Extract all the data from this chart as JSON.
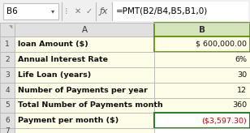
{
  "formula_bar_cell": "B6",
  "formula_bar_formula": "=PMT(B2/B4,B5,B1,0)",
  "col_a_header": "A",
  "col_b_header": "B",
  "rows": [
    {
      "row": "1",
      "label": "loan Amount ($)",
      "value": "$ 600,000.00",
      "highlight": false
    },
    {
      "row": "2",
      "label": "Annual Interest Rate",
      "value": "6%",
      "highlight": false
    },
    {
      "row": "3",
      "label": "Life Loan (years)",
      "value": "30",
      "highlight": false
    },
    {
      "row": "4",
      "label": "Number of Payments per year",
      "value": "12",
      "highlight": false
    },
    {
      "row": "5",
      "label": "Total Number of Payments month",
      "value": "360",
      "highlight": false
    },
    {
      "row": "6",
      "label": "Payment per month ($)",
      "value": "($3,597.30)",
      "highlight": true
    }
  ],
  "cell_bg_color": "#FEFDE8",
  "header_bg_color": "#E0E0E0",
  "formula_bar_bg": "#F0F0F0",
  "highlight_value_color": "#CC0000",
  "border_color": "#B0B0B0",
  "selected_col_b_color": "#D6E4BC",
  "selected_b_header_color": "#5A8A00",
  "last_row_border_color": "#2E7D32",
  "row1_b_border_color": "#2E7D32",
  "white": "#FFFFFF"
}
